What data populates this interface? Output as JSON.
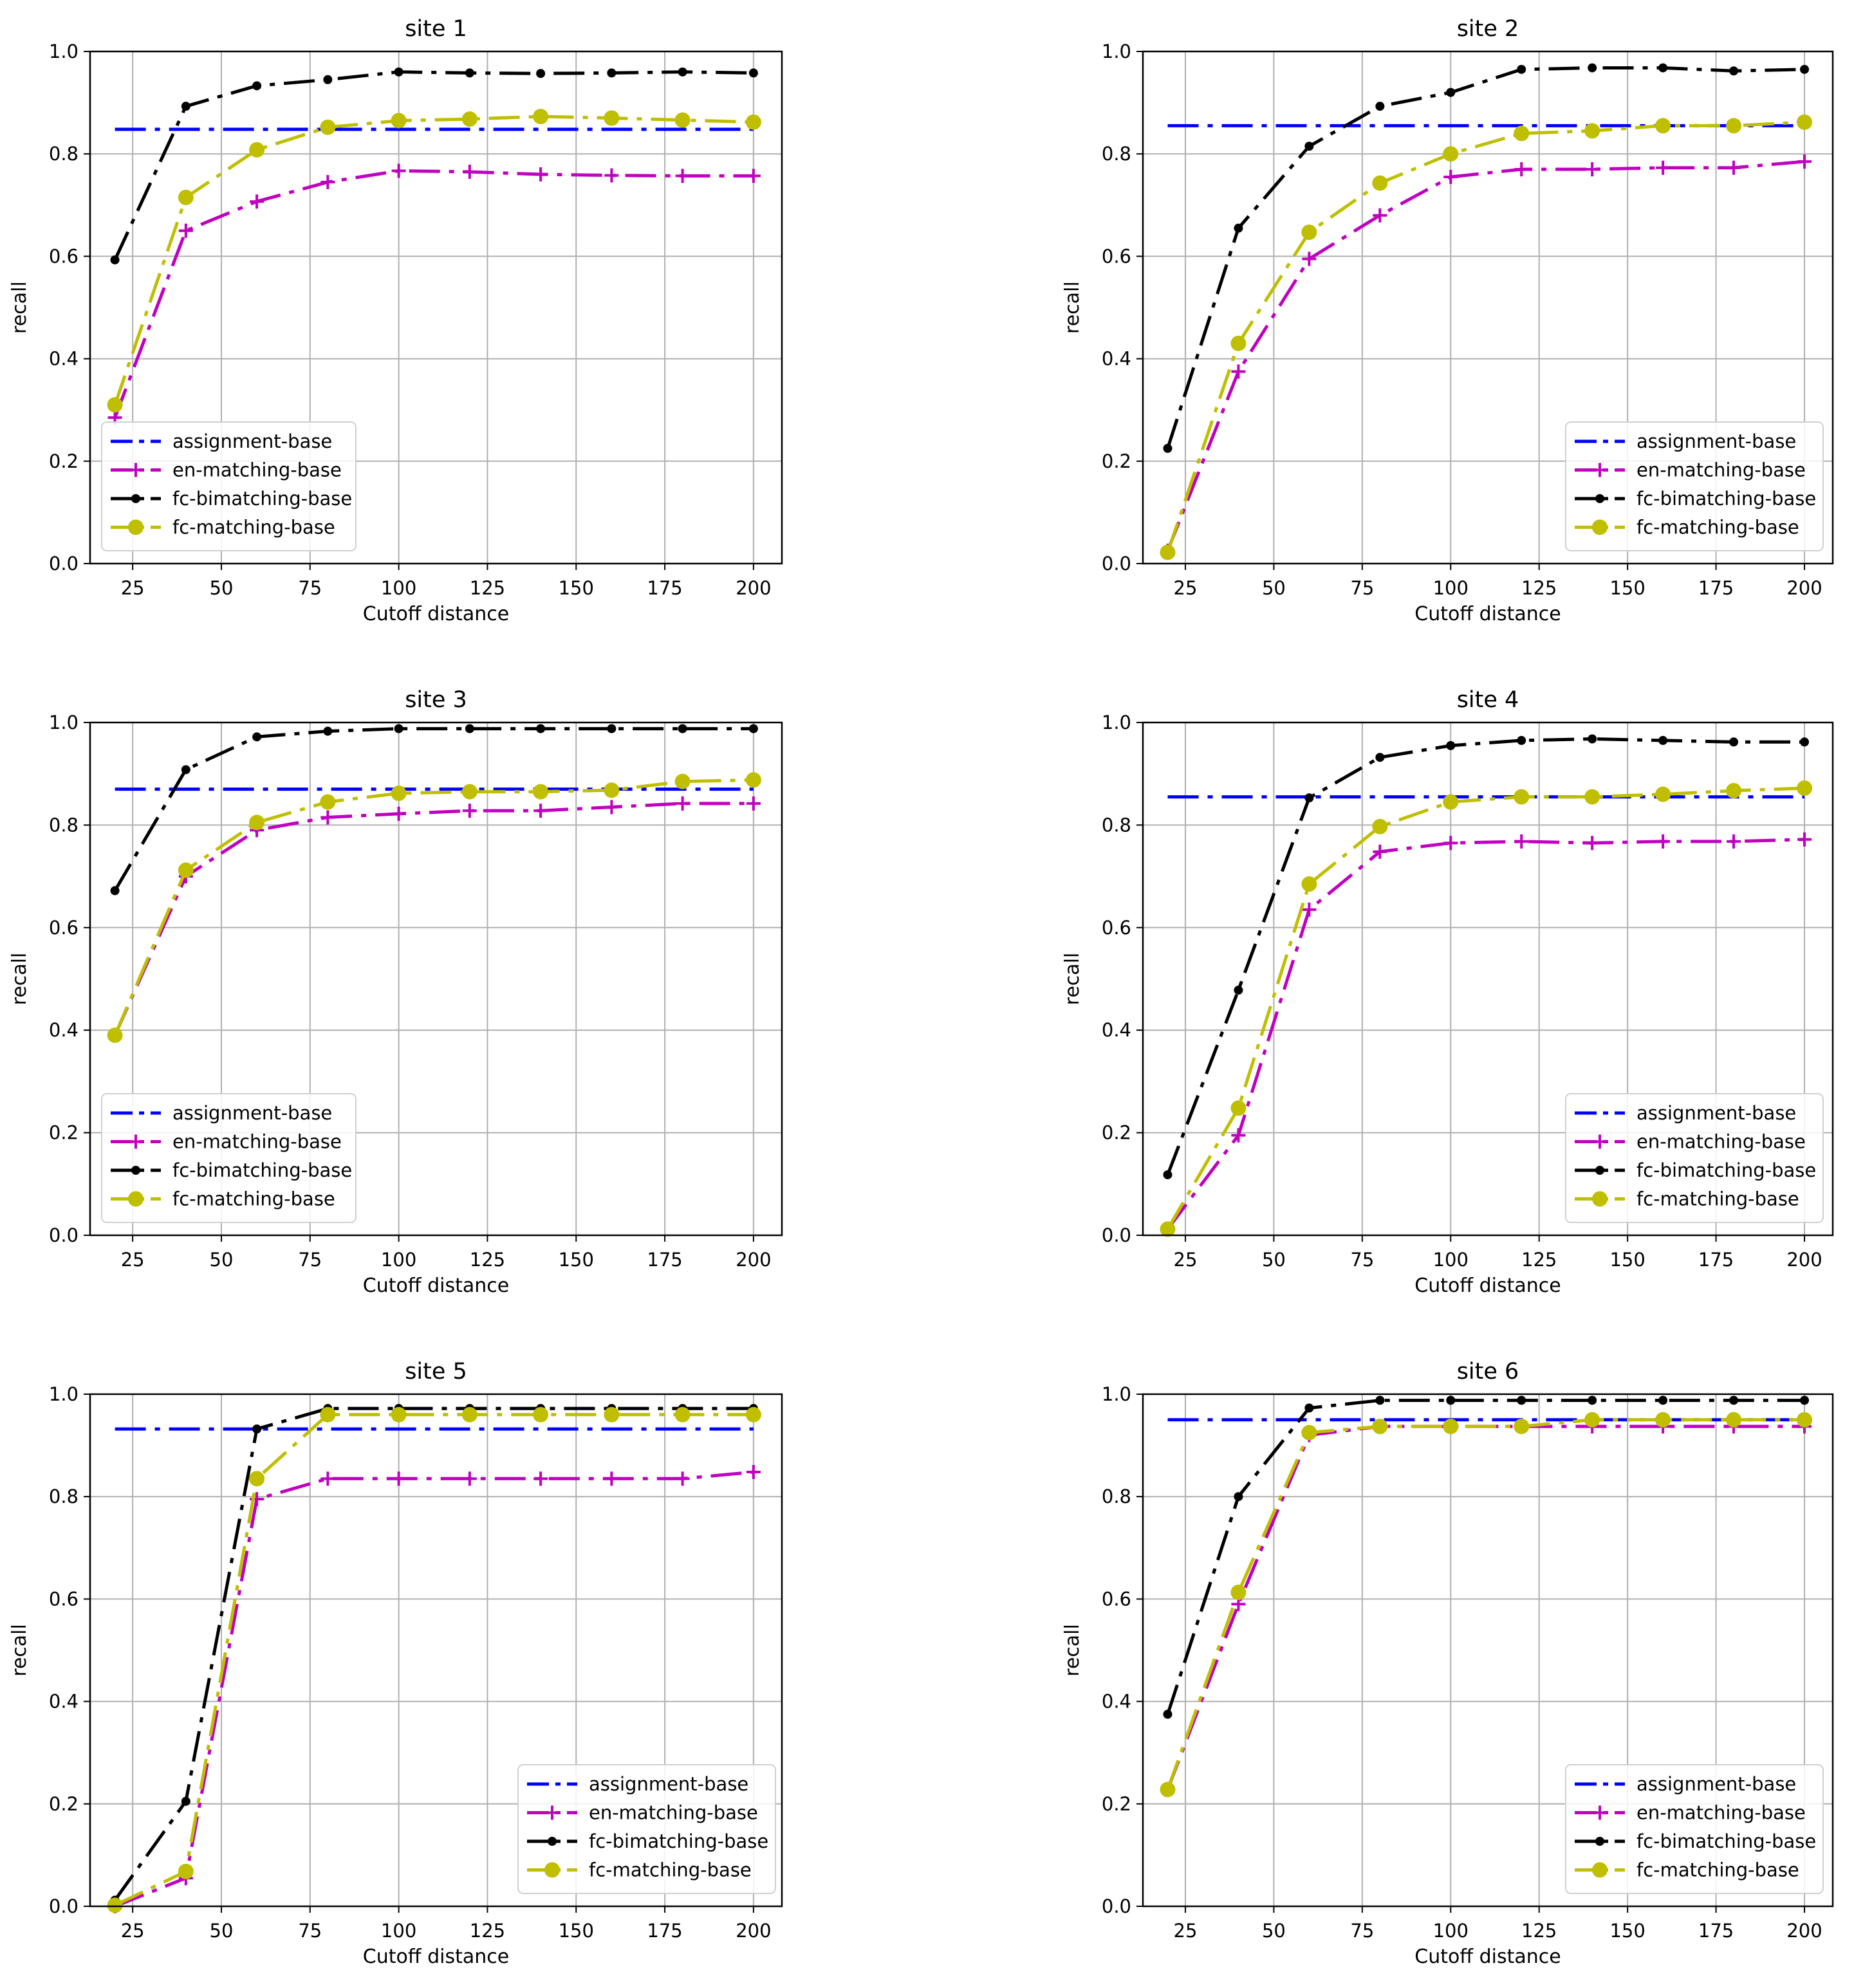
{
  "figure": {
    "legend_labels": [
      "assignment-base",
      "en-matching-base",
      "fc-bimatching-base",
      "fc-matching-base"
    ],
    "series_styles": [
      {
        "name": "assignment-base",
        "color": "#0000ff",
        "marker": "none"
      },
      {
        "name": "en-matching-base",
        "color": "#c000c0",
        "marker": "plus"
      },
      {
        "name": "fc-bimatching-base",
        "color": "#000000",
        "marker": "dot"
      },
      {
        "name": "fc-matching-base",
        "color": "#bfbf00",
        "marker": "circle"
      }
    ]
  },
  "chart_data": [
    {
      "type": "line",
      "title": "site 1",
      "xlabel": "Cutoff distance",
      "ylabel": "recall",
      "xlim": [
        13,
        208
      ],
      "ylim": [
        0,
        1.0
      ],
      "xticks": [
        25,
        50,
        75,
        100,
        125,
        150,
        175,
        200
      ],
      "yticks": [
        0.0,
        0.2,
        0.4,
        0.6,
        0.8,
        1.0
      ],
      "grid": true,
      "legend_position": "lower-left",
      "x": [
        20,
        40,
        60,
        80,
        100,
        120,
        140,
        160,
        180,
        200
      ],
      "series": [
        {
          "name": "assignment-base",
          "values": [
            0.848,
            0.848,
            0.848,
            0.848,
            0.848,
            0.848,
            0.848,
            0.848,
            0.848,
            0.848
          ]
        },
        {
          "name": "en-matching-base",
          "values": [
            0.285,
            0.65,
            0.707,
            0.745,
            0.767,
            0.765,
            0.76,
            0.758,
            0.757,
            0.757
          ]
        },
        {
          "name": "fc-bimatching-base",
          "values": [
            0.593,
            0.893,
            0.933,
            0.945,
            0.96,
            0.958,
            0.957,
            0.958,
            0.96,
            0.958
          ]
        },
        {
          "name": "fc-matching-base",
          "values": [
            0.31,
            0.715,
            0.808,
            0.852,
            0.865,
            0.868,
            0.873,
            0.87,
            0.866,
            0.862
          ]
        }
      ]
    },
    {
      "type": "line",
      "title": "site 2",
      "xlabel": "Cutoff distance",
      "ylabel": "recall",
      "xlim": [
        13,
        208
      ],
      "ylim": [
        0,
        1.0
      ],
      "xticks": [
        25,
        50,
        75,
        100,
        125,
        150,
        175,
        200
      ],
      "yticks": [
        0.0,
        0.2,
        0.4,
        0.6,
        0.8,
        1.0
      ],
      "grid": true,
      "legend_position": "lower-right",
      "x": [
        20,
        40,
        60,
        80,
        100,
        120,
        140,
        160,
        180,
        200
      ],
      "series": [
        {
          "name": "assignment-base",
          "values": [
            0.855,
            0.855,
            0.855,
            0.855,
            0.855,
            0.855,
            0.855,
            0.855,
            0.855,
            0.855
          ]
        },
        {
          "name": "en-matching-base",
          "values": [
            0.025,
            0.375,
            0.595,
            0.68,
            0.755,
            0.77,
            0.77,
            0.773,
            0.773,
            0.785
          ]
        },
        {
          "name": "fc-bimatching-base",
          "values": [
            0.225,
            0.655,
            0.815,
            0.893,
            0.92,
            0.965,
            0.968,
            0.968,
            0.962,
            0.965
          ]
        },
        {
          "name": "fc-matching-base",
          "values": [
            0.022,
            0.43,
            0.647,
            0.743,
            0.8,
            0.84,
            0.845,
            0.855,
            0.855,
            0.862
          ]
        }
      ]
    },
    {
      "type": "line",
      "title": "site 3",
      "xlabel": "Cutoff distance",
      "ylabel": "recall",
      "xlim": [
        13,
        208
      ],
      "ylim": [
        0,
        1.0
      ],
      "xticks": [
        25,
        50,
        75,
        100,
        125,
        150,
        175,
        200
      ],
      "yticks": [
        0.0,
        0.2,
        0.4,
        0.6,
        0.8,
        1.0
      ],
      "grid": true,
      "legend_position": "lower-left",
      "x": [
        20,
        40,
        60,
        80,
        100,
        120,
        140,
        160,
        180,
        200
      ],
      "series": [
        {
          "name": "assignment-base",
          "values": [
            0.87,
            0.87,
            0.87,
            0.87,
            0.87,
            0.87,
            0.87,
            0.87,
            0.87,
            0.87
          ]
        },
        {
          "name": "en-matching-base",
          "values": [
            0.39,
            0.7,
            0.79,
            0.815,
            0.822,
            0.828,
            0.828,
            0.835,
            0.842,
            0.842
          ]
        },
        {
          "name": "fc-bimatching-base",
          "values": [
            0.672,
            0.908,
            0.972,
            0.983,
            0.988,
            0.988,
            0.988,
            0.988,
            0.988,
            0.988
          ]
        },
        {
          "name": "fc-matching-base",
          "values": [
            0.39,
            0.712,
            0.805,
            0.845,
            0.862,
            0.865,
            0.865,
            0.868,
            0.885,
            0.888
          ]
        }
      ]
    },
    {
      "type": "line",
      "title": "site 4",
      "xlabel": "Cutoff distance",
      "ylabel": "recall",
      "xlim": [
        13,
        208
      ],
      "ylim": [
        0,
        1.0
      ],
      "xticks": [
        25,
        50,
        75,
        100,
        125,
        150,
        175,
        200
      ],
      "yticks": [
        0.0,
        0.2,
        0.4,
        0.6,
        0.8,
        1.0
      ],
      "grid": true,
      "legend_position": "lower-right",
      "x": [
        20,
        40,
        60,
        80,
        100,
        120,
        140,
        160,
        180,
        200
      ],
      "series": [
        {
          "name": "assignment-base",
          "values": [
            0.855,
            0.855,
            0.855,
            0.855,
            0.855,
            0.855,
            0.855,
            0.855,
            0.855,
            0.855
          ]
        },
        {
          "name": "en-matching-base",
          "values": [
            0.012,
            0.195,
            0.635,
            0.748,
            0.765,
            0.768,
            0.765,
            0.768,
            0.768,
            0.772
          ]
        },
        {
          "name": "fc-bimatching-base",
          "values": [
            0.118,
            0.478,
            0.853,
            0.932,
            0.955,
            0.965,
            0.968,
            0.965,
            0.962,
            0.962
          ]
        },
        {
          "name": "fc-matching-base",
          "values": [
            0.012,
            0.248,
            0.685,
            0.797,
            0.845,
            0.855,
            0.855,
            0.86,
            0.867,
            0.872
          ]
        }
      ]
    },
    {
      "type": "line",
      "title": "site 5",
      "xlabel": "Cutoff distance",
      "ylabel": "recall",
      "xlim": [
        13,
        208
      ],
      "ylim": [
        0,
        1.0
      ],
      "xticks": [
        25,
        50,
        75,
        100,
        125,
        150,
        175,
        200
      ],
      "yticks": [
        0.0,
        0.2,
        0.4,
        0.6,
        0.8,
        1.0
      ],
      "grid": true,
      "legend_position": "lower-right",
      "x": [
        20,
        40,
        60,
        80,
        100,
        120,
        140,
        160,
        180,
        200
      ],
      "series": [
        {
          "name": "assignment-base",
          "values": [
            0.932,
            0.932,
            0.932,
            0.932,
            0.932,
            0.932,
            0.932,
            0.932,
            0.932,
            0.932
          ]
        },
        {
          "name": "en-matching-base",
          "values": [
            0.0,
            0.055,
            0.795,
            0.835,
            0.835,
            0.835,
            0.835,
            0.835,
            0.835,
            0.848
          ]
        },
        {
          "name": "fc-bimatching-base",
          "values": [
            0.012,
            0.205,
            0.932,
            0.972,
            0.972,
            0.972,
            0.972,
            0.972,
            0.972,
            0.972
          ]
        },
        {
          "name": "fc-matching-base",
          "values": [
            0.002,
            0.068,
            0.835,
            0.96,
            0.96,
            0.96,
            0.96,
            0.96,
            0.96,
            0.96
          ]
        }
      ]
    },
    {
      "type": "line",
      "title": "site 6",
      "xlabel": "Cutoff distance",
      "ylabel": "recall",
      "xlim": [
        13,
        208
      ],
      "ylim": [
        0,
        1.0
      ],
      "xticks": [
        25,
        50,
        75,
        100,
        125,
        150,
        175,
        200
      ],
      "yticks": [
        0.0,
        0.2,
        0.4,
        0.6,
        0.8,
        1.0
      ],
      "grid": true,
      "legend_position": "lower-right",
      "x": [
        20,
        40,
        60,
        80,
        100,
        120,
        140,
        160,
        180,
        200
      ],
      "series": [
        {
          "name": "assignment-base",
          "values": [
            0.95,
            0.95,
            0.95,
            0.95,
            0.95,
            0.95,
            0.95,
            0.95,
            0.95,
            0.95
          ]
        },
        {
          "name": "en-matching-base",
          "values": [
            0.228,
            0.59,
            0.92,
            0.937,
            0.937,
            0.937,
            0.937,
            0.937,
            0.937,
            0.937
          ]
        },
        {
          "name": "fc-bimatching-base",
          "values": [
            0.375,
            0.8,
            0.973,
            0.988,
            0.988,
            0.988,
            0.988,
            0.988,
            0.988,
            0.988
          ]
        },
        {
          "name": "fc-matching-base",
          "values": [
            0.228,
            0.613,
            0.925,
            0.937,
            0.937,
            0.937,
            0.95,
            0.95,
            0.95,
            0.95
          ]
        }
      ]
    }
  ]
}
